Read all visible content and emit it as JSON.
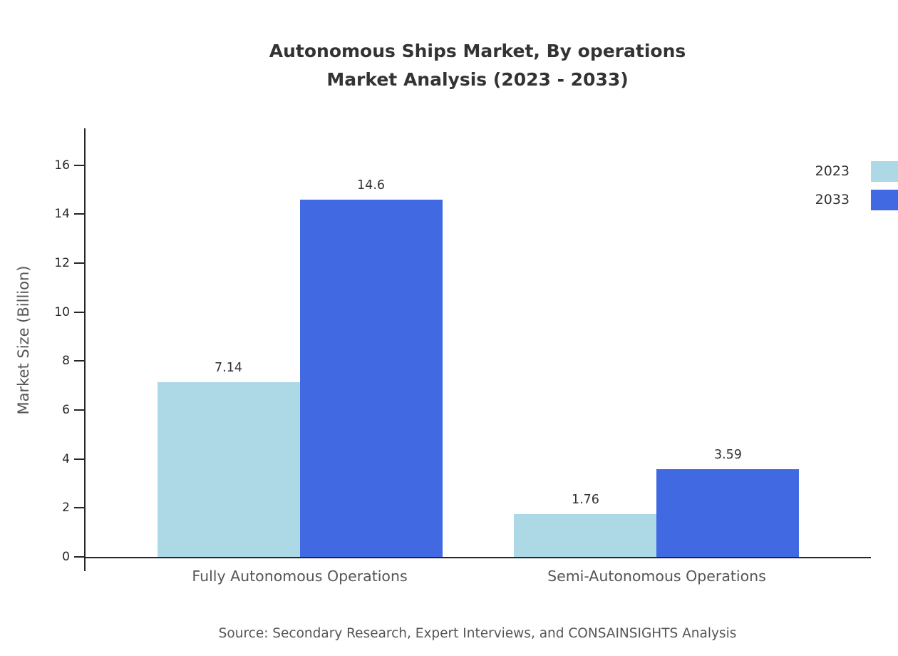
{
  "title": {
    "line1": "Autonomous Ships Market, By operations",
    "line2": "Market Analysis (2023 - 2033)"
  },
  "ylabel": "Market Size (Billion)",
  "source": "Source: Secondary Research, Expert Interviews, and CONSAINSIGHTS Analysis",
  "chart_data": {
    "type": "bar",
    "title": "Autonomous Ships Market, By operations Market Analysis (2023 - 2033)",
    "categories": [
      "Fully Autonomous Operations",
      "Semi-Autonomous Operations"
    ],
    "series": [
      {
        "name": "2023",
        "color": "#add8e6",
        "values": [
          7.14,
          1.76
        ]
      },
      {
        "name": "2033",
        "color": "#4169e1",
        "values": [
          14.6,
          3.59
        ]
      }
    ],
    "value_labels": [
      [
        "7.14",
        "1.76"
      ],
      [
        "14.6",
        "3.59"
      ]
    ],
    "xlabel": "",
    "ylabel": "Market Size (Billion)",
    "ylim": [
      0,
      17.5
    ],
    "yticks": [
      0,
      2,
      4,
      6,
      8,
      10,
      12,
      14,
      16
    ],
    "legend_position": "top-right",
    "grid": false,
    "axis_color": "#262626",
    "text_color": "#333333"
  }
}
